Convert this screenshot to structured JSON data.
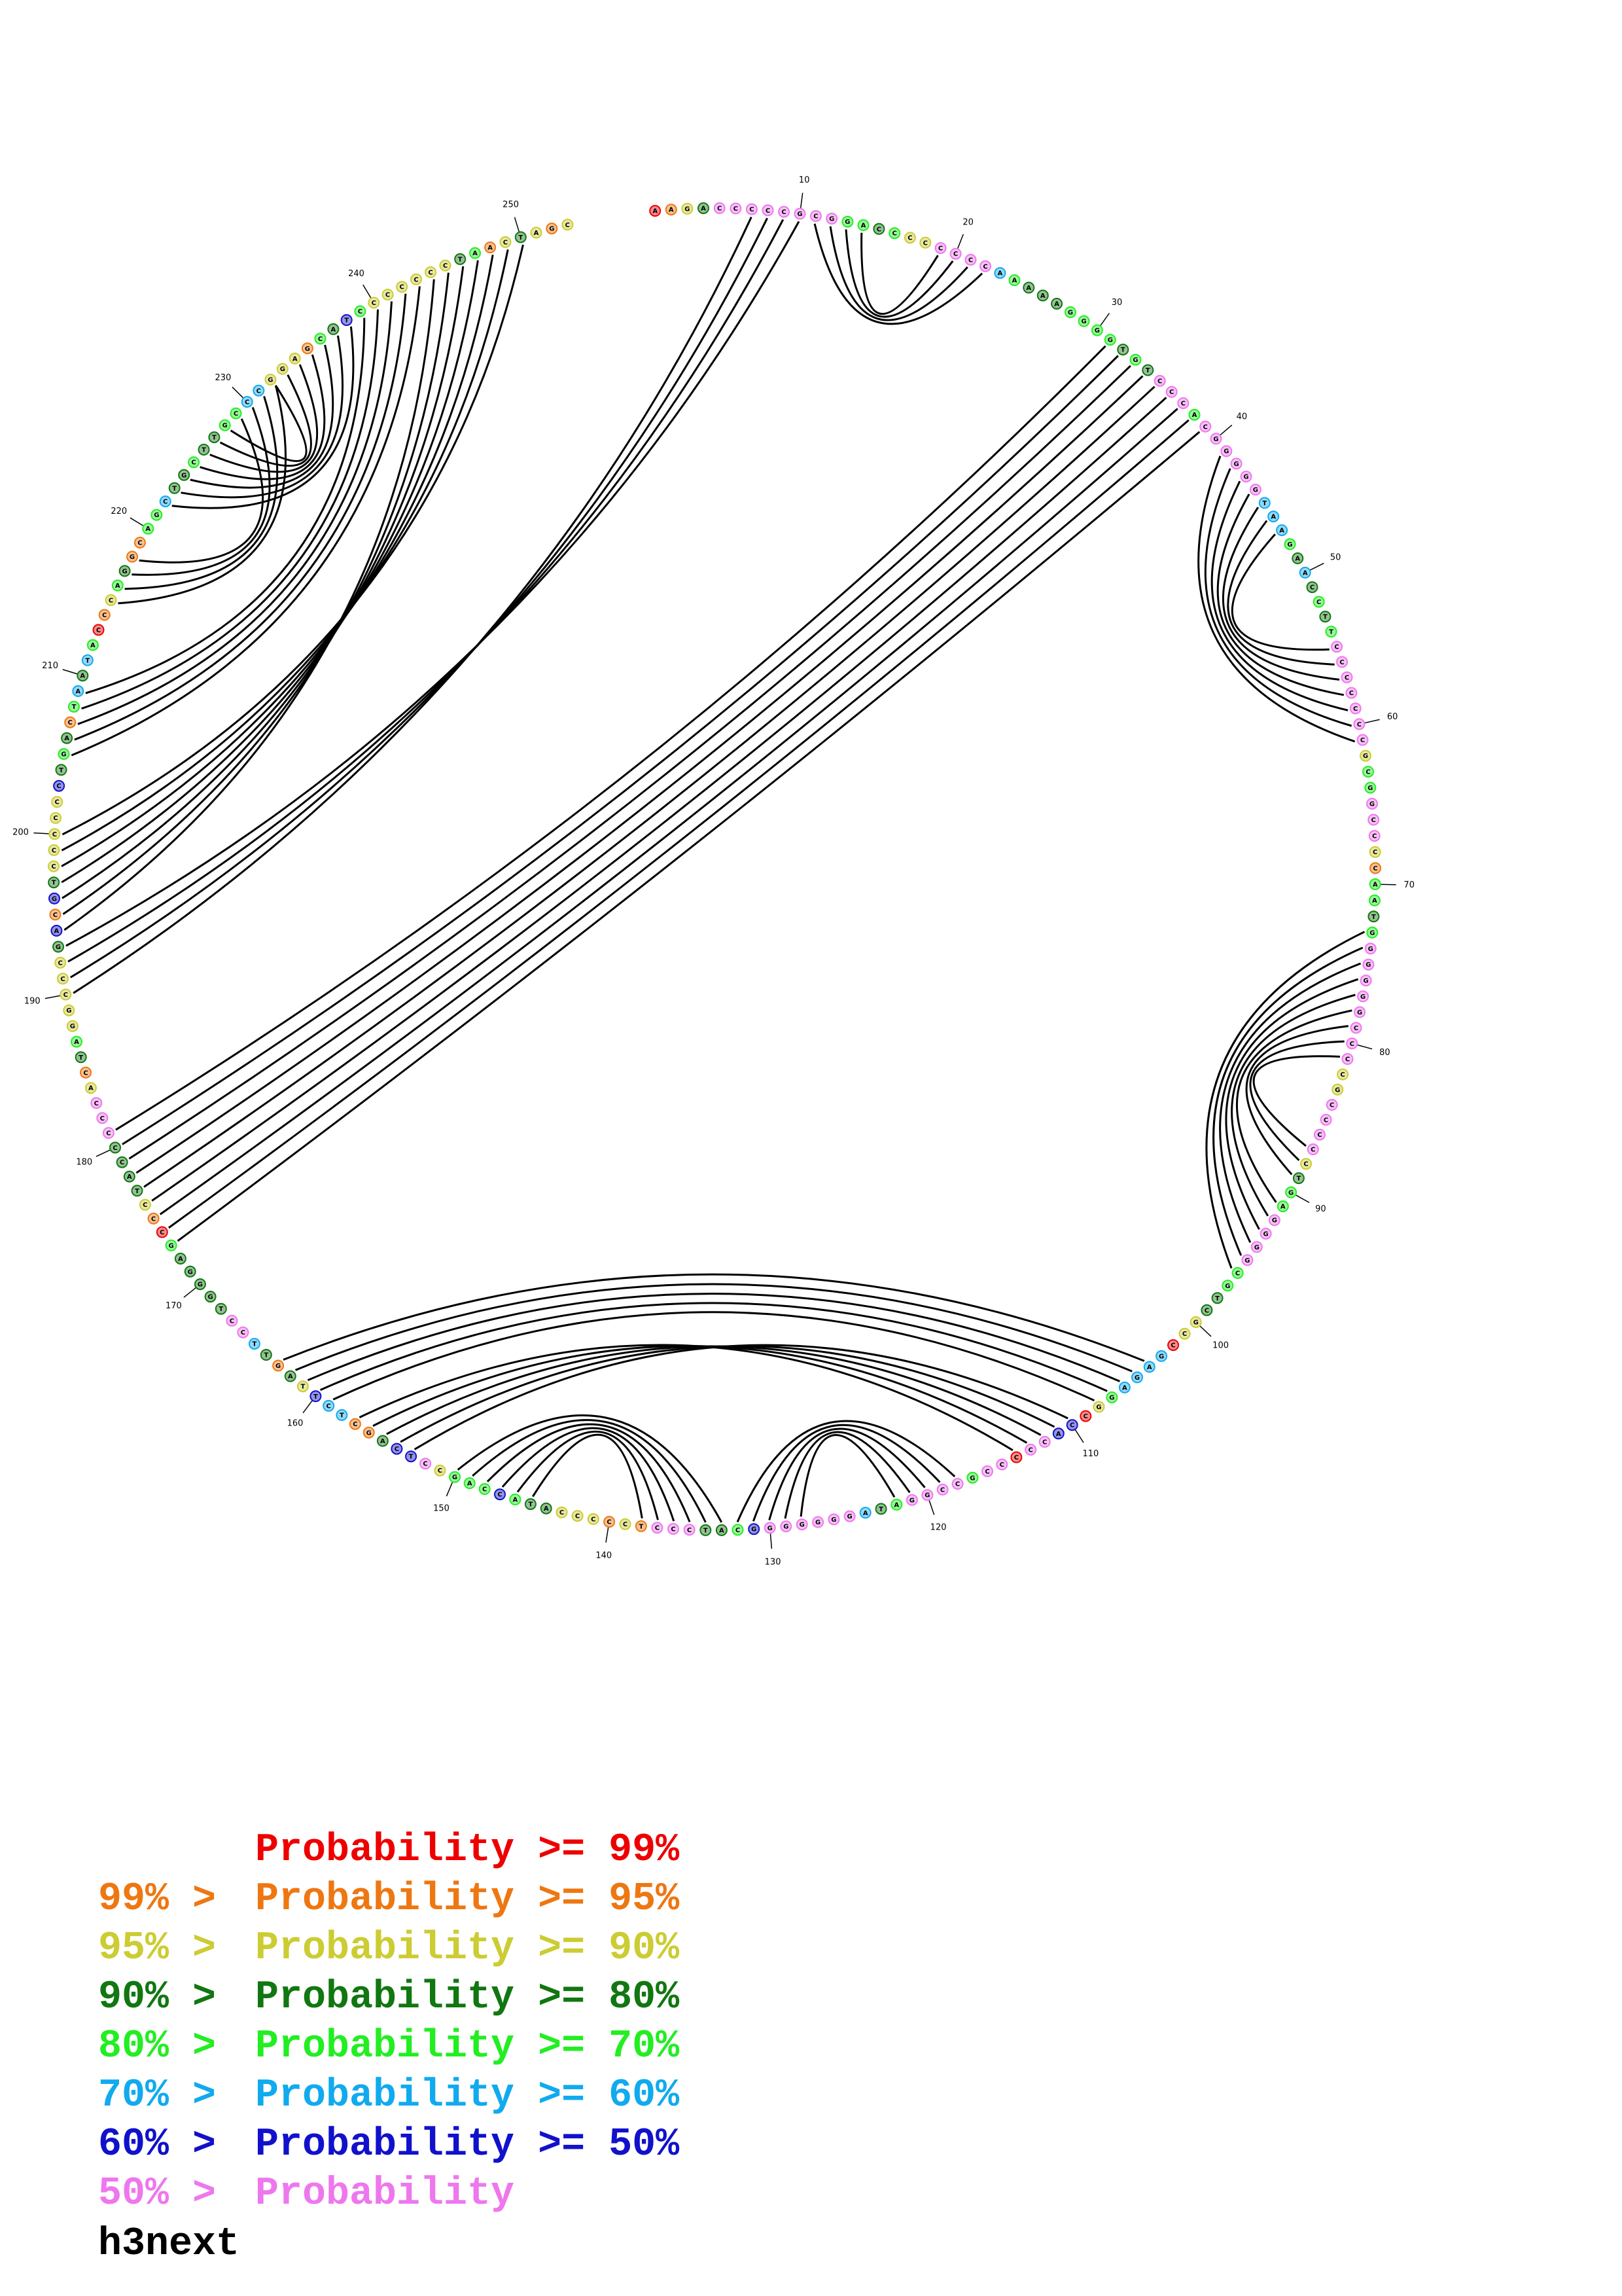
{
  "molecule_name": "h3next",
  "colors": {
    "p99": "#ee0000",
    "p95": "#ee7711",
    "p90": "#cccc33",
    "p80": "#117711",
    "p70": "#22ee22",
    "p60": "#11aaee",
    "p50": "#1111cc",
    "plt50": "#ee77ee"
  },
  "legend": [
    {
      "lead": "",
      "main": "Probability >= 99%",
      "color": "#ee0000"
    },
    {
      "lead": "99% >",
      "main": "Probability >= 95%",
      "color": "#ee7711"
    },
    {
      "lead": "95% >",
      "main": "Probability >= 90%",
      "color": "#cccc33"
    },
    {
      "lead": "90% >",
      "main": "Probability >= 80%",
      "color": "#117711"
    },
    {
      "lead": "80% >",
      "main": "Probability >= 70%",
      "color": "#22ee22"
    },
    {
      "lead": "70% >",
      "main": "Probability >= 60%",
      "color": "#11aaee"
    },
    {
      "lead": "60% >",
      "main": "Probability >= 50%",
      "color": "#1111cc"
    },
    {
      "lead": "50% >",
      "main": "Probability",
      "color": "#ee77ee"
    }
  ],
  "tick_labels": [
    "10",
    "20",
    "30",
    "40",
    "50",
    "60",
    "70",
    "80",
    "90",
    "100",
    "110",
    "120",
    "130",
    "140",
    "150",
    "160",
    "170",
    "180",
    "190",
    "200",
    "210",
    "220",
    "230",
    "240",
    "250"
  ],
  "nucleotides": [
    {
      "i": 1,
      "b": "A",
      "c": "p99"
    },
    {
      "i": 2,
      "b": "A",
      "c": "p95"
    },
    {
      "i": 3,
      "b": "G",
      "c": "p90"
    },
    {
      "i": 4,
      "b": "A",
      "c": "p80"
    },
    {
      "i": 5,
      "b": "C",
      "c": "plt50"
    },
    {
      "i": 6,
      "b": "C",
      "c": "plt50"
    },
    {
      "i": 7,
      "b": "C",
      "c": "plt50"
    },
    {
      "i": 8,
      "b": "C",
      "c": "plt50"
    },
    {
      "i": 9,
      "b": "C",
      "c": "plt50"
    },
    {
      "i": 10,
      "b": "G",
      "c": "plt50"
    },
    {
      "i": 11,
      "b": "C",
      "c": "plt50"
    },
    {
      "i": 12,
      "b": "G",
      "c": "plt50"
    },
    {
      "i": 13,
      "b": "G",
      "c": "p70"
    },
    {
      "i": 14,
      "b": "A",
      "c": "p70"
    },
    {
      "i": 15,
      "b": "C",
      "c": "p80"
    },
    {
      "i": 16,
      "b": "C",
      "c": "p70"
    },
    {
      "i": 17,
      "b": "C",
      "c": "p90"
    },
    {
      "i": 18,
      "b": "C",
      "c": "p90"
    },
    {
      "i": 19,
      "b": "C",
      "c": "plt50"
    },
    {
      "i": 20,
      "b": "C",
      "c": "plt50"
    },
    {
      "i": 21,
      "b": "C",
      "c": "plt50"
    },
    {
      "i": 22,
      "b": "C",
      "c": "plt50"
    },
    {
      "i": 23,
      "b": "A",
      "c": "p60"
    },
    {
      "i": 24,
      "b": "A",
      "c": "p70"
    },
    {
      "i": 25,
      "b": "A",
      "c": "p80"
    },
    {
      "i": 26,
      "b": "A",
      "c": "p80"
    },
    {
      "i": 27,
      "b": "A",
      "c": "p80"
    },
    {
      "i": 28,
      "b": "G",
      "c": "p70"
    },
    {
      "i": 29,
      "b": "G",
      "c": "p70"
    },
    {
      "i": 30,
      "b": "G",
      "c": "p70"
    },
    {
      "i": 31,
      "b": "G",
      "c": "p70"
    },
    {
      "i": 32,
      "b": "T",
      "c": "p80"
    },
    {
      "i": 33,
      "b": "G",
      "c": "p70"
    },
    {
      "i": 34,
      "b": "T",
      "c": "p80"
    },
    {
      "i": 35,
      "b": "C",
      "c": "plt50"
    },
    {
      "i": 36,
      "b": "C",
      "c": "plt50"
    },
    {
      "i": 37,
      "b": "C",
      "c": "plt50"
    },
    {
      "i": 38,
      "b": "A",
      "c": "p70"
    },
    {
      "i": 39,
      "b": "C",
      "c": "plt50"
    },
    {
      "i": 40,
      "b": "G",
      "c": "plt50"
    },
    {
      "i": 41,
      "b": "G",
      "c": "plt50"
    },
    {
      "i": 42,
      "b": "G",
      "c": "plt50"
    },
    {
      "i": 43,
      "b": "G",
      "c": "plt50"
    },
    {
      "i": 44,
      "b": "G",
      "c": "plt50"
    },
    {
      "i": 45,
      "b": "T",
      "c": "p60"
    },
    {
      "i": 46,
      "b": "A",
      "c": "p60"
    },
    {
      "i": 47,
      "b": "A",
      "c": "p60"
    },
    {
      "i": 48,
      "b": "G",
      "c": "p70"
    },
    {
      "i": 49,
      "b": "A",
      "c": "p80"
    },
    {
      "i": 50,
      "b": "A",
      "c": "p60"
    },
    {
      "i": 51,
      "b": "C",
      "c": "p80"
    },
    {
      "i": 52,
      "b": "C",
      "c": "p70"
    },
    {
      "i": 53,
      "b": "T",
      "c": "p80"
    },
    {
      "i": 54,
      "b": "T",
      "c": "p70"
    },
    {
      "i": 55,
      "b": "C",
      "c": "plt50"
    },
    {
      "i": 56,
      "b": "C",
      "c": "plt50"
    },
    {
      "i": 57,
      "b": "C",
      "c": "plt50"
    },
    {
      "i": 58,
      "b": "C",
      "c": "plt50"
    },
    {
      "i": 59,
      "b": "C",
      "c": "plt50"
    },
    {
      "i": 60,
      "b": "C",
      "c": "plt50"
    },
    {
      "i": 61,
      "b": "C",
      "c": "plt50"
    },
    {
      "i": 62,
      "b": "G",
      "c": "p90"
    },
    {
      "i": 63,
      "b": "C",
      "c": "p70"
    },
    {
      "i": 64,
      "b": "G",
      "c": "p70"
    },
    {
      "i": 65,
      "b": "G",
      "c": "plt50"
    },
    {
      "i": 66,
      "b": "C",
      "c": "plt50"
    },
    {
      "i": 67,
      "b": "C",
      "c": "plt50"
    },
    {
      "i": 68,
      "b": "C",
      "c": "p90"
    },
    {
      "i": 69,
      "b": "C",
      "c": "p95"
    },
    {
      "i": 70,
      "b": "A",
      "c": "p70"
    },
    {
      "i": 71,
      "b": "A",
      "c": "p70"
    },
    {
      "i": 72,
      "b": "T",
      "c": "p80"
    },
    {
      "i": 73,
      "b": "G",
      "c": "p70"
    },
    {
      "i": 74,
      "b": "G",
      "c": "plt50"
    },
    {
      "i": 75,
      "b": "G",
      "c": "plt50"
    },
    {
      "i": 76,
      "b": "G",
      "c": "plt50"
    },
    {
      "i": 77,
      "b": "G",
      "c": "plt50"
    },
    {
      "i": 78,
      "b": "G",
      "c": "plt50"
    },
    {
      "i": 79,
      "b": "C",
      "c": "plt50"
    },
    {
      "i": 80,
      "b": "C",
      "c": "plt50"
    },
    {
      "i": 81,
      "b": "C",
      "c": "plt50"
    },
    {
      "i": 82,
      "b": "C",
      "c": "p90"
    },
    {
      "i": 83,
      "b": "G",
      "c": "p90"
    },
    {
      "i": 84,
      "b": "C",
      "c": "plt50"
    },
    {
      "i": 85,
      "b": "C",
      "c": "plt50"
    },
    {
      "i": 86,
      "b": "C",
      "c": "plt50"
    },
    {
      "i": 87,
      "b": "C",
      "c": "plt50"
    },
    {
      "i": 88,
      "b": "C",
      "c": "p90"
    },
    {
      "i": 89,
      "b": "T",
      "c": "p80"
    },
    {
      "i": 90,
      "b": "G",
      "c": "p70"
    },
    {
      "i": 91,
      "b": "A",
      "c": "p70"
    },
    {
      "i": 92,
      "b": "G",
      "c": "plt50"
    },
    {
      "i": 93,
      "b": "G",
      "c": "plt50"
    },
    {
      "i": 94,
      "b": "G",
      "c": "plt50"
    },
    {
      "i": 95,
      "b": "G",
      "c": "plt50"
    },
    {
      "i": 96,
      "b": "C",
      "c": "p70"
    },
    {
      "i": 97,
      "b": "G",
      "c": "p70"
    },
    {
      "i": 98,
      "b": "T",
      "c": "p80"
    },
    {
      "i": 99,
      "b": "C",
      "c": "p80"
    },
    {
      "i": 100,
      "b": "G",
      "c": "p90"
    },
    {
      "i": 101,
      "b": "C",
      "c": "p90"
    },
    {
      "i": 102,
      "b": "C",
      "c": "p99"
    },
    {
      "i": 103,
      "b": "G",
      "c": "p60"
    },
    {
      "i": 104,
      "b": "A",
      "c": "p60"
    },
    {
      "i": 105,
      "b": "G",
      "c": "p60"
    },
    {
      "i": 106,
      "b": "A",
      "c": "p60"
    },
    {
      "i": 107,
      "b": "G",
      "c": "p70"
    },
    {
      "i": 108,
      "b": "G",
      "c": "p90"
    },
    {
      "i": 109,
      "b": "C",
      "c": "p99"
    },
    {
      "i": 110,
      "b": "C",
      "c": "p50"
    },
    {
      "i": 111,
      "b": "A",
      "c": "p50"
    },
    {
      "i": 112,
      "b": "C",
      "c": "plt50"
    },
    {
      "i": 113,
      "b": "C",
      "c": "plt50"
    },
    {
      "i": 114,
      "b": "C",
      "c": "p99"
    },
    {
      "i": 115,
      "b": "C",
      "c": "plt50"
    },
    {
      "i": 116,
      "b": "C",
      "c": "plt50"
    },
    {
      "i": 117,
      "b": "G",
      "c": "p70"
    },
    {
      "i": 118,
      "b": "C",
      "c": "plt50"
    },
    {
      "i": 119,
      "b": "C",
      "c": "plt50"
    },
    {
      "i": 120,
      "b": "G",
      "c": "plt50"
    },
    {
      "i": 121,
      "b": "G",
      "c": "plt50"
    },
    {
      "i": 122,
      "b": "A",
      "c": "p70"
    },
    {
      "i": 123,
      "b": "T",
      "c": "p80"
    },
    {
      "i": 124,
      "b": "A",
      "c": "p60"
    },
    {
      "i": 125,
      "b": "G",
      "c": "plt50"
    },
    {
      "i": 126,
      "b": "G",
      "c": "plt50"
    },
    {
      "i": 127,
      "b": "G",
      "c": "plt50"
    },
    {
      "i": 128,
      "b": "G",
      "c": "plt50"
    },
    {
      "i": 129,
      "b": "G",
      "c": "plt50"
    },
    {
      "i": 130,
      "b": "G",
      "c": "plt50"
    },
    {
      "i": 131,
      "b": "G",
      "c": "p50"
    },
    {
      "i": 132,
      "b": "C",
      "c": "p70"
    },
    {
      "i": 133,
      "b": "A",
      "c": "p80"
    },
    {
      "i": 134,
      "b": "T",
      "c": "p80"
    },
    {
      "i": 135,
      "b": "C",
      "c": "plt50"
    },
    {
      "i": 136,
      "b": "C",
      "c": "plt50"
    },
    {
      "i": 137,
      "b": "C",
      "c": "plt50"
    },
    {
      "i": 138,
      "b": "T",
      "c": "p95"
    },
    {
      "i": 139,
      "b": "C",
      "c": "p90"
    },
    {
      "i": 140,
      "b": "C",
      "c": "p95"
    },
    {
      "i": 141,
      "b": "C",
      "c": "p90"
    },
    {
      "i": 142,
      "b": "C",
      "c": "p90"
    },
    {
      "i": 143,
      "b": "C",
      "c": "p90"
    },
    {
      "i": 144,
      "b": "A",
      "c": "p80"
    },
    {
      "i": 145,
      "b": "T",
      "c": "p80"
    },
    {
      "i": 146,
      "b": "A",
      "c": "p70"
    },
    {
      "i": 147,
      "b": "C",
      "c": "p50"
    },
    {
      "i": 148,
      "b": "C",
      "c": "p70"
    },
    {
      "i": 149,
      "b": "A",
      "c": "p70"
    },
    {
      "i": 150,
      "b": "G",
      "c": "p70"
    },
    {
      "i": 151,
      "b": "C",
      "c": "p90"
    },
    {
      "i": 152,
      "b": "C",
      "c": "plt50"
    },
    {
      "i": 153,
      "b": "T",
      "c": "p50"
    },
    {
      "i": 154,
      "b": "C",
      "c": "p50"
    },
    {
      "i": 155,
      "b": "A",
      "c": "p80"
    },
    {
      "i": 156,
      "b": "G",
      "c": "p95"
    },
    {
      "i": 157,
      "b": "C",
      "c": "p95"
    },
    {
      "i": 158,
      "b": "T",
      "c": "p60"
    },
    {
      "i": 159,
      "b": "C",
      "c": "p60"
    },
    {
      "i": 160,
      "b": "T",
      "c": "p50"
    },
    {
      "i": 161,
      "b": "T",
      "c": "p90"
    },
    {
      "i": 162,
      "b": "A",
      "c": "p80"
    },
    {
      "i": 163,
      "b": "G",
      "c": "p95"
    },
    {
      "i": 164,
      "b": "T",
      "c": "p80"
    },
    {
      "i": 165,
      "b": "T",
      "c": "p60"
    },
    {
      "i": 166,
      "b": "C",
      "c": "plt50"
    },
    {
      "i": 167,
      "b": "C",
      "c": "plt50"
    },
    {
      "i": 168,
      "b": "T",
      "c": "p80"
    },
    {
      "i": 169,
      "b": "G",
      "c": "p80"
    },
    {
      "i": 170,
      "b": "G",
      "c": "p80"
    },
    {
      "i": 171,
      "b": "G",
      "c": "p80"
    },
    {
      "i": 172,
      "b": "A",
      "c": "p80"
    },
    {
      "i": 173,
      "b": "G",
      "c": "p70"
    },
    {
      "i": 174,
      "b": "C",
      "c": "p99"
    },
    {
      "i": 175,
      "b": "C",
      "c": "p95"
    },
    {
      "i": 176,
      "b": "C",
      "c": "p90"
    },
    {
      "i": 177,
      "b": "T",
      "c": "p80"
    },
    {
      "i": 178,
      "b": "A",
      "c": "p80"
    },
    {
      "i": 179,
      "b": "C",
      "c": "p80"
    },
    {
      "i": 180,
      "b": "C",
      "c": "p80"
    },
    {
      "i": 181,
      "b": "C",
      "c": "plt50"
    },
    {
      "i": 182,
      "b": "C",
      "c": "plt50"
    },
    {
      "i": 183,
      "b": "C",
      "c": "plt50"
    },
    {
      "i": 184,
      "b": "A",
      "c": "p90"
    },
    {
      "i": 185,
      "b": "C",
      "c": "p95"
    },
    {
      "i": 186,
      "b": "T",
      "c": "p80"
    },
    {
      "i": 187,
      "b": "A",
      "c": "p70"
    },
    {
      "i": 188,
      "b": "G",
      "c": "p90"
    },
    {
      "i": 189,
      "b": "G",
      "c": "p90"
    },
    {
      "i": 190,
      "b": "C",
      "c": "p90"
    },
    {
      "i": 191,
      "b": "C",
      "c": "p90"
    },
    {
      "i": 192,
      "b": "C",
      "c": "p90"
    },
    {
      "i": 193,
      "b": "G",
      "c": "p80"
    },
    {
      "i": 194,
      "b": "A",
      "c": "p50"
    },
    {
      "i": 195,
      "b": "C",
      "c": "p95"
    },
    {
      "i": 196,
      "b": "G",
      "c": "p50"
    },
    {
      "i": 197,
      "b": "T",
      "c": "p80"
    },
    {
      "i": 198,
      "b": "C",
      "c": "p90"
    },
    {
      "i": 199,
      "b": "C",
      "c": "p90"
    },
    {
      "i": 200,
      "b": "C",
      "c": "p90"
    },
    {
      "i": 201,
      "b": "C",
      "c": "p90"
    },
    {
      "i": 202,
      "b": "C",
      "c": "p90"
    },
    {
      "i": 203,
      "b": "C",
      "c": "p50"
    },
    {
      "i": 204,
      "b": "T",
      "c": "p80"
    },
    {
      "i": 205,
      "b": "G",
      "c": "p70"
    },
    {
      "i": 206,
      "b": "A",
      "c": "p80"
    },
    {
      "i": 207,
      "b": "C",
      "c": "p95"
    },
    {
      "i": 208,
      "b": "T",
      "c": "p70"
    },
    {
      "i": 209,
      "b": "A",
      "c": "p60"
    },
    {
      "i": 210,
      "b": "A",
      "c": "p80"
    },
    {
      "i": 211,
      "b": "T",
      "c": "p60"
    },
    {
      "i": 212,
      "b": "A",
      "c": "p70"
    },
    {
      "i": 213,
      "b": "C",
      "c": "p99"
    },
    {
      "i": 214,
      "b": "C",
      "c": "p95"
    },
    {
      "i": 215,
      "b": "C",
      "c": "p90"
    },
    {
      "i": 216,
      "b": "A",
      "c": "p70"
    },
    {
      "i": 217,
      "b": "G",
      "c": "p80"
    },
    {
      "i": 218,
      "b": "G",
      "c": "p95"
    },
    {
      "i": 219,
      "b": "C",
      "c": "p95"
    },
    {
      "i": 220,
      "b": "A",
      "c": "p70"
    },
    {
      "i": 221,
      "b": "G",
      "c": "p70"
    },
    {
      "i": 222,
      "b": "C",
      "c": "p60"
    },
    {
      "i": 223,
      "b": "T",
      "c": "p80"
    },
    {
      "i": 224,
      "b": "G",
      "c": "p80"
    },
    {
      "i": 225,
      "b": "C",
      "c": "p70"
    },
    {
      "i": 226,
      "b": "T",
      "c": "p80"
    },
    {
      "i": 227,
      "b": "T",
      "c": "p80"
    },
    {
      "i": 228,
      "b": "G",
      "c": "p70"
    },
    {
      "i": 229,
      "b": "C",
      "c": "p70"
    },
    {
      "i": 230,
      "b": "C",
      "c": "p60"
    },
    {
      "i": 231,
      "b": "C",
      "c": "p60"
    },
    {
      "i": 232,
      "b": "G",
      "c": "p90"
    },
    {
      "i": 233,
      "b": "G",
      "c": "p90"
    },
    {
      "i": 234,
      "b": "A",
      "c": "p90"
    },
    {
      "i": 235,
      "b": "G",
      "c": "p95"
    },
    {
      "i": 236,
      "b": "C",
      "c": "p70"
    },
    {
      "i": 237,
      "b": "A",
      "c": "p80"
    },
    {
      "i": 238,
      "b": "T",
      "c": "p50"
    },
    {
      "i": 239,
      "b": "C",
      "c": "p70"
    },
    {
      "i": 240,
      "b": "C",
      "c": "p90"
    },
    {
      "i": 241,
      "b": "C",
      "c": "p90"
    },
    {
      "i": 242,
      "b": "C",
      "c": "p90"
    },
    {
      "i": 243,
      "b": "C",
      "c": "p90"
    },
    {
      "i": 244,
      "b": "C",
      "c": "p90"
    },
    {
      "i": 245,
      "b": "C",
      "c": "p90"
    },
    {
      "i": 246,
      "b": "T",
      "c": "p80"
    },
    {
      "i": 247,
      "b": "A",
      "c": "p70"
    },
    {
      "i": 248,
      "b": "A",
      "c": "p95"
    },
    {
      "i": 249,
      "b": "C",
      "c": "p90"
    },
    {
      "i": 250,
      "b": "T",
      "c": "p80"
    },
    {
      "i": 251,
      "b": "A",
      "c": "p90"
    },
    {
      "i": 252,
      "b": "G",
      "c": "p95"
    },
    {
      "i": 253,
      "b": "C",
      "c": "p90"
    }
  ],
  "pairs": [
    [
      11,
      22
    ],
    [
      12,
      21
    ],
    [
      13,
      20
    ],
    [
      14,
      19
    ],
    [
      41,
      61
    ],
    [
      42,
      60
    ],
    [
      43,
      59
    ],
    [
      44,
      58
    ],
    [
      45,
      57
    ],
    [
      46,
      56
    ],
    [
      47,
      55
    ],
    [
      73,
      96
    ],
    [
      74,
      95
    ],
    [
      75,
      94
    ],
    [
      76,
      93
    ],
    [
      77,
      92
    ],
    [
      78,
      91
    ],
    [
      79,
      89
    ],
    [
      80,
      88
    ],
    [
      81,
      87
    ],
    [
      118,
      132
    ],
    [
      119,
      131
    ],
    [
      120,
      130
    ],
    [
      121,
      129
    ],
    [
      122,
      128
    ],
    [
      133,
      150
    ],
    [
      134,
      149
    ],
    [
      135,
      148
    ],
    [
      136,
      147
    ],
    [
      137,
      146
    ],
    [
      138,
      145
    ],
    [
      104,
      163
    ],
    [
      105,
      162
    ],
    [
      106,
      161
    ],
    [
      107,
      160
    ],
    [
      108,
      159
    ],
    [
      110,
      153
    ],
    [
      111,
      154
    ],
    [
      112,
      155
    ],
    [
      113,
      156
    ],
    [
      114,
      157
    ],
    [
      31,
      181
    ],
    [
      32,
      180
    ],
    [
      33,
      179
    ],
    [
      34,
      178
    ],
    [
      35,
      177
    ],
    [
      36,
      176
    ],
    [
      37,
      175
    ],
    [
      38,
      174
    ],
    [
      39,
      173
    ],
    [
      7,
      190
    ],
    [
      8,
      191
    ],
    [
      9,
      192
    ],
    [
      10,
      193
    ],
    [
      244,
      194
    ],
    [
      245,
      195
    ],
    [
      246,
      196
    ],
    [
      247,
      197
    ],
    [
      248,
      198
    ],
    [
      249,
      199
    ],
    [
      250,
      200
    ],
    [
      222,
      238
    ],
    [
      223,
      237
    ],
    [
      224,
      236
    ],
    [
      225,
      235
    ],
    [
      226,
      234
    ],
    [
      227,
      233
    ],
    [
      228,
      232
    ],
    [
      205,
      243
    ],
    [
      206,
      242
    ],
    [
      207,
      241
    ],
    [
      208,
      240
    ],
    [
      209,
      239
    ],
    [
      215,
      232
    ],
    [
      216,
      231
    ],
    [
      217,
      230
    ],
    [
      218,
      229
    ]
  ]
}
